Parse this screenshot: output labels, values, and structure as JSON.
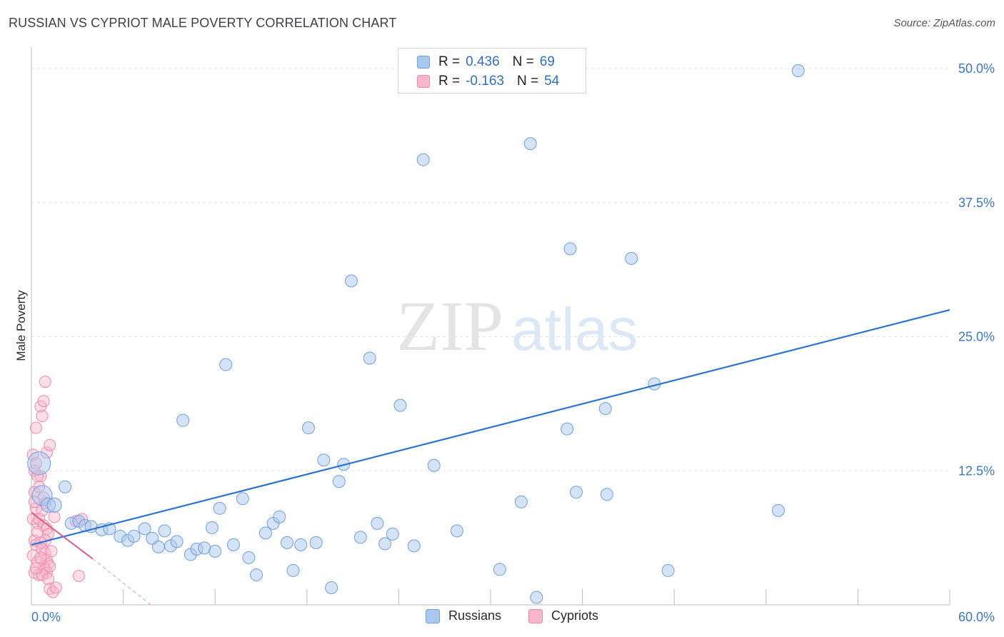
{
  "header": {
    "title": "RUSSIAN VS CYPRIOT MALE POVERTY CORRELATION CHART",
    "source": "Source: ZipAtlas.com"
  },
  "legend": {
    "rows": [
      {
        "r_label": "R =",
        "r_value": "0.436",
        "n_label": "N =",
        "n_value": "69"
      },
      {
        "r_label": "R =",
        "r_value": "-0.163",
        "n_label": "N =",
        "n_value": "54"
      }
    ]
  },
  "bottom_legend": {
    "items": [
      {
        "label": "Russians"
      },
      {
        "label": "Cypriots"
      }
    ]
  },
  "watermark": {
    "zip": "ZIP",
    "atlas": "atlas"
  },
  "colors": {
    "russians_fill": "#a9c8f0",
    "russians_stroke": "#6fa0dc",
    "russians_line": "#2b74d0",
    "cypriots_fill": "#f7b6cb",
    "cypriots_stroke": "#ee8aab",
    "cypriots_line": "#e05c8a",
    "tick_text": "#3a78c8",
    "grid": "#e3e3e3"
  },
  "chart_data": {
    "type": "scatter",
    "title": "RUSSIAN VS CYPRIOT MALE POVERTY CORRELATION CHART",
    "xlabel": "",
    "ylabel": "Male Poverty",
    "xlim": [
      0,
      60
    ],
    "ylim": [
      0,
      50
    ],
    "x_tick_labels": [
      {
        "value": 0,
        "label": "0.0%"
      },
      {
        "value": 60,
        "label": "60.0%"
      }
    ],
    "y_tick_labels": [
      {
        "value": 12.5,
        "label": "12.5%"
      },
      {
        "value": 25,
        "label": "25.0%"
      },
      {
        "value": 37.5,
        "label": "37.5%"
      },
      {
        "value": 50,
        "label": "50.0%"
      }
    ],
    "series": [
      {
        "name": "Russians",
        "R": 0.436,
        "N": 69,
        "trend": {
          "x0": 0,
          "y0": 5.6,
          "x1": 60,
          "y1": 27.5
        },
        "points": [
          [
            0.5,
            13.2
          ],
          [
            0.7,
            10.2
          ],
          [
            1.1,
            9.3
          ],
          [
            1.5,
            9.3
          ],
          [
            2.2,
            11.0
          ],
          [
            2.6,
            7.6
          ],
          [
            3.1,
            7.8
          ],
          [
            3.5,
            7.4
          ],
          [
            3.9,
            7.3
          ],
          [
            4.6,
            7.0
          ],
          [
            5.1,
            7.1
          ],
          [
            5.8,
            6.4
          ],
          [
            6.3,
            6.0
          ],
          [
            6.7,
            6.4
          ],
          [
            7.4,
            7.1
          ],
          [
            7.9,
            6.2
          ],
          [
            8.3,
            5.4
          ],
          [
            8.7,
            6.9
          ],
          [
            9.1,
            5.5
          ],
          [
            9.5,
            5.9
          ],
          [
            9.9,
            17.2
          ],
          [
            10.4,
            4.7
          ],
          [
            10.8,
            5.2
          ],
          [
            11.3,
            5.3
          ],
          [
            11.8,
            7.2
          ],
          [
            12.3,
            9.0
          ],
          [
            12.7,
            22.4
          ],
          [
            13.2,
            5.6
          ],
          [
            13.8,
            9.9
          ],
          [
            14.2,
            4.4
          ],
          [
            14.7,
            2.8
          ],
          [
            15.3,
            6.7
          ],
          [
            15.8,
            7.6
          ],
          [
            16.2,
            8.2
          ],
          [
            16.7,
            5.8
          ],
          [
            17.1,
            3.2
          ],
          [
            17.6,
            5.6
          ],
          [
            18.1,
            16.5
          ],
          [
            18.6,
            5.8
          ],
          [
            19.1,
            13.5
          ],
          [
            19.6,
            1.6
          ],
          [
            20.1,
            11.5
          ],
          [
            20.4,
            13.1
          ],
          [
            20.9,
            30.2
          ],
          [
            21.5,
            6.3
          ],
          [
            22.1,
            23.0
          ],
          [
            22.6,
            7.6
          ],
          [
            23.1,
            5.7
          ],
          [
            23.6,
            6.6
          ],
          [
            24.1,
            18.6
          ],
          [
            25.6,
            41.5
          ],
          [
            26.3,
            13.0
          ],
          [
            27.8,
            6.9
          ],
          [
            30.6,
            3.3
          ],
          [
            32.0,
            9.6
          ],
          [
            32.6,
            43.0
          ],
          [
            33.0,
            0.7
          ],
          [
            35.0,
            16.4
          ],
          [
            35.2,
            33.2
          ],
          [
            35.6,
            10.5
          ],
          [
            37.5,
            18.3
          ],
          [
            37.6,
            10.3
          ],
          [
            39.2,
            32.3
          ],
          [
            40.7,
            20.6
          ],
          [
            41.6,
            3.2
          ],
          [
            48.8,
            8.8
          ],
          [
            50.1,
            49.8
          ],
          [
            25.0,
            5.5
          ],
          [
            12.0,
            5.0
          ]
        ]
      },
      {
        "name": "Cypriots",
        "R": -0.163,
        "N": 54,
        "trend": {
          "x0": 0,
          "y0": 8.6,
          "x1": 4.0,
          "y1": 4.3,
          "dashed_to": {
            "x": 7.8,
            "y": 0
          }
        },
        "points": [
          [
            0.1,
            14.0
          ],
          [
            0.2,
            12.5
          ],
          [
            0.3,
            16.5
          ],
          [
            0.2,
            10.5
          ],
          [
            0.3,
            9.0
          ],
          [
            0.1,
            8.0
          ],
          [
            0.4,
            7.6
          ],
          [
            0.2,
            6.0
          ],
          [
            0.3,
            5.6
          ],
          [
            0.1,
            4.6
          ],
          [
            0.4,
            4.0
          ],
          [
            0.2,
            3.0
          ],
          [
            0.5,
            2.8
          ],
          [
            0.6,
            18.5
          ],
          [
            0.7,
            17.6
          ],
          [
            0.8,
            19.0
          ],
          [
            0.9,
            20.8
          ],
          [
            1.0,
            14.2
          ],
          [
            1.2,
            14.9
          ],
          [
            0.6,
            12.0
          ],
          [
            0.8,
            10.0
          ],
          [
            0.9,
            9.5
          ],
          [
            0.7,
            8.8
          ],
          [
            0.5,
            8.0
          ],
          [
            0.8,
            7.4
          ],
          [
            1.0,
            7.1
          ],
          [
            1.1,
            6.6
          ],
          [
            0.9,
            6.0
          ],
          [
            0.6,
            5.8
          ],
          [
            0.7,
            5.2
          ],
          [
            0.9,
            4.8
          ],
          [
            1.0,
            4.2
          ],
          [
            1.1,
            3.8
          ],
          [
            0.8,
            3.6
          ],
          [
            0.9,
            3.3
          ],
          [
            1.0,
            3.0
          ],
          [
            0.7,
            2.8
          ],
          [
            1.1,
            2.4
          ],
          [
            1.2,
            1.5
          ],
          [
            1.4,
            1.2
          ],
          [
            1.6,
            1.6
          ],
          [
            1.5,
            8.2
          ],
          [
            2.9,
            7.8
          ],
          [
            3.3,
            8.0
          ],
          [
            3.1,
            2.7
          ],
          [
            0.3,
            13.2
          ],
          [
            0.4,
            12.0
          ],
          [
            0.5,
            11.0
          ],
          [
            0.2,
            9.6
          ],
          [
            0.4,
            6.8
          ],
          [
            0.6,
            4.4
          ],
          [
            0.3,
            3.4
          ],
          [
            1.3,
            5.0
          ],
          [
            1.2,
            3.6
          ]
        ]
      }
    ]
  }
}
